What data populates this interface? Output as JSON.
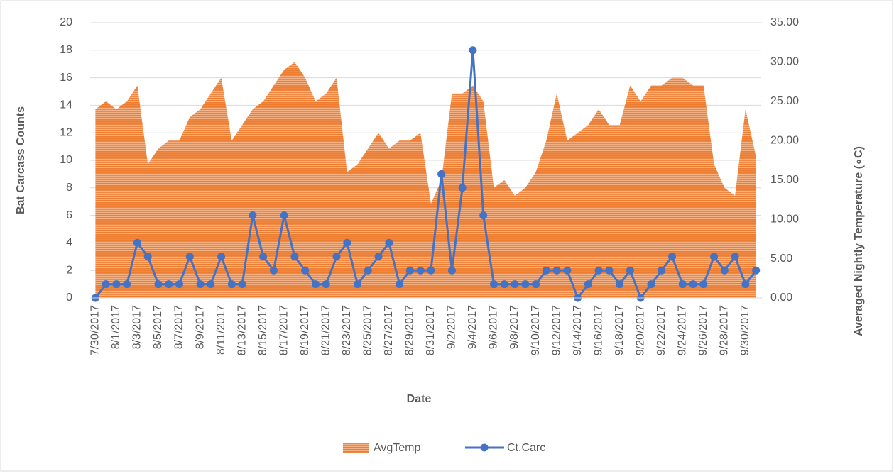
{
  "chart_data": {
    "type": "area_line",
    "x_label": "Date",
    "y_label": "Bat Carcass Counts",
    "y2_label": "Averaged  Nightly Temperature (∘C)",
    "categories": [
      "7/30/2017",
      null,
      "8/1/2017",
      null,
      "8/3/2017",
      null,
      "8/5/2017",
      null,
      "8/7/2017",
      null,
      "8/9/2017",
      null,
      "8/11/2017",
      null,
      "8/13/2017",
      null,
      "8/15/2017",
      null,
      "8/17/2017",
      null,
      "8/19/2017",
      null,
      "8/21/2017",
      null,
      "8/23/2017",
      null,
      "8/25/2017",
      null,
      "8/27/2017",
      null,
      "8/29/2017",
      null,
      "8/31/2017",
      null,
      "9/2/2017",
      null,
      "9/4/2017",
      null,
      "9/6/2017",
      null,
      "9/8/2017",
      null,
      "9/10/2017",
      null,
      "9/12/2017",
      null,
      "9/14/2017",
      null,
      "9/16/2017",
      null,
      "9/18/2017",
      null,
      "9/20/2017",
      null,
      "9/22/2017",
      null,
      "9/24/2017",
      null,
      "9/26/2017",
      null,
      "9/28/2017",
      null,
      "9/30/2017",
      null
    ],
    "series": [
      {
        "name": "AvgTemp",
        "color": "#ed7d31",
        "axis": "y2",
        "values": [
          24,
          25,
          24,
          25,
          27,
          17,
          19,
          20,
          20,
          23,
          24,
          26,
          28,
          20,
          22,
          24,
          25,
          27,
          29,
          30,
          28,
          25,
          26,
          28,
          16,
          17,
          19,
          21,
          19,
          20,
          20,
          21,
          12,
          15,
          26,
          26,
          27,
          25,
          14,
          15,
          13,
          14,
          16,
          20,
          26,
          20,
          21,
          22,
          24,
          22,
          22,
          27,
          25,
          27,
          27,
          28,
          28,
          27,
          27,
          17,
          14,
          13,
          24,
          18
        ]
      },
      {
        "name": "Ct.Carc",
        "color": "#4472c4",
        "axis": "y",
        "values": [
          0,
          1,
          1,
          1,
          4,
          3,
          1,
          1,
          1,
          3,
          1,
          1,
          3,
          1,
          1,
          6,
          3,
          2,
          6,
          3,
          2,
          1,
          1,
          3,
          4,
          1,
          2,
          3,
          4,
          1,
          2,
          2,
          2,
          9,
          2,
          8,
          18,
          6,
          1,
          1,
          1,
          1,
          1,
          2,
          2,
          2,
          0,
          1,
          2,
          2,
          1,
          2,
          0,
          1,
          2,
          3,
          1,
          1,
          1,
          3,
          2,
          3,
          1,
          2
        ]
      }
    ],
    "ylim": [
      0,
      20
    ],
    "yticks": [
      0,
      2,
      4,
      6,
      8,
      10,
      12,
      14,
      16,
      18,
      20
    ],
    "y2lim": [
      0,
      35
    ],
    "y2ticks": [
      {
        "value": 0,
        "label": "0.00"
      },
      {
        "value": 5,
        "label": "5.00"
      },
      {
        "value": 10,
        "label": "10.00"
      },
      {
        "value": 15,
        "label": "15.00"
      },
      {
        "value": 20,
        "label": "20.00"
      },
      {
        "value": 25,
        "label": "25.00"
      },
      {
        "value": 30,
        "label": "30.00"
      },
      {
        "value": 35,
        "label": "35.00"
      }
    ],
    "grid": true,
    "legend": "bottom"
  }
}
